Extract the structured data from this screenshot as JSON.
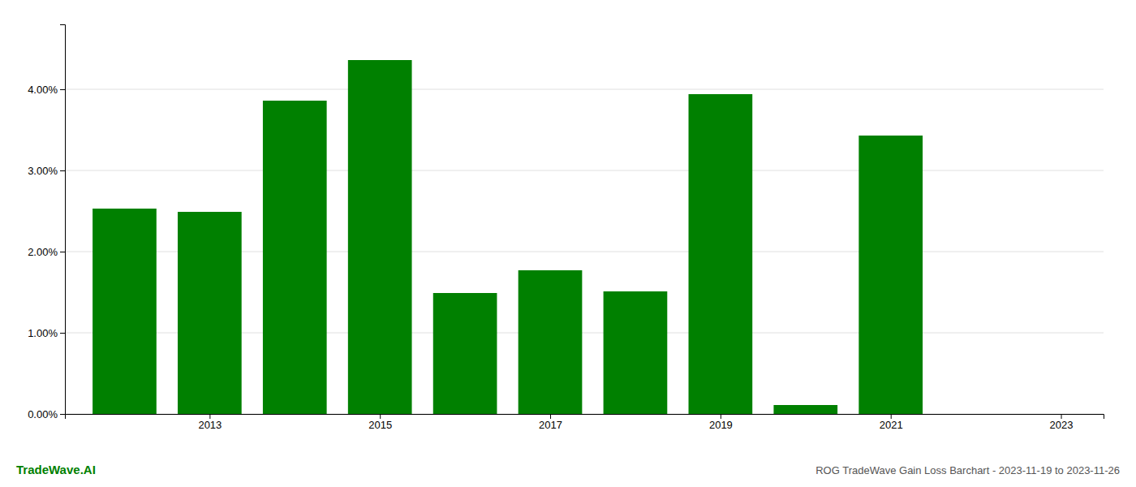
{
  "chart_data": {
    "type": "bar",
    "title": "ROG TradeWave Gain Loss Barchart - 2023-11-19 to 2023-11-26",
    "annotations": [
      "TradeWave.AI"
    ],
    "x": [
      2012,
      2013,
      2014,
      2015,
      2016,
      2017,
      2018,
      2019,
      2020,
      2021,
      2022
    ],
    "values": [
      0.0253,
      0.0249,
      0.0386,
      0.0436,
      0.0149,
      0.0177,
      0.0151,
      0.0394,
      0.0011,
      0.0343,
      0.0
    ],
    "color": "#008000",
    "xlim": [
      2011.3,
      2023.5
    ],
    "xticks": [
      2013,
      2015,
      2017,
      2019,
      2021,
      2023
    ],
    "ylim": [
      0.0,
      0.048
    ],
    "yticks": [
      {
        "value": 0.0,
        "label": "0.00%"
      },
      {
        "value": 0.01,
        "label": "1.00%"
      },
      {
        "value": 0.02,
        "label": "2.00%"
      },
      {
        "value": 0.03,
        "label": "3.00%"
      },
      {
        "value": 0.04,
        "label": "4.00%"
      }
    ],
    "grid": true
  }
}
